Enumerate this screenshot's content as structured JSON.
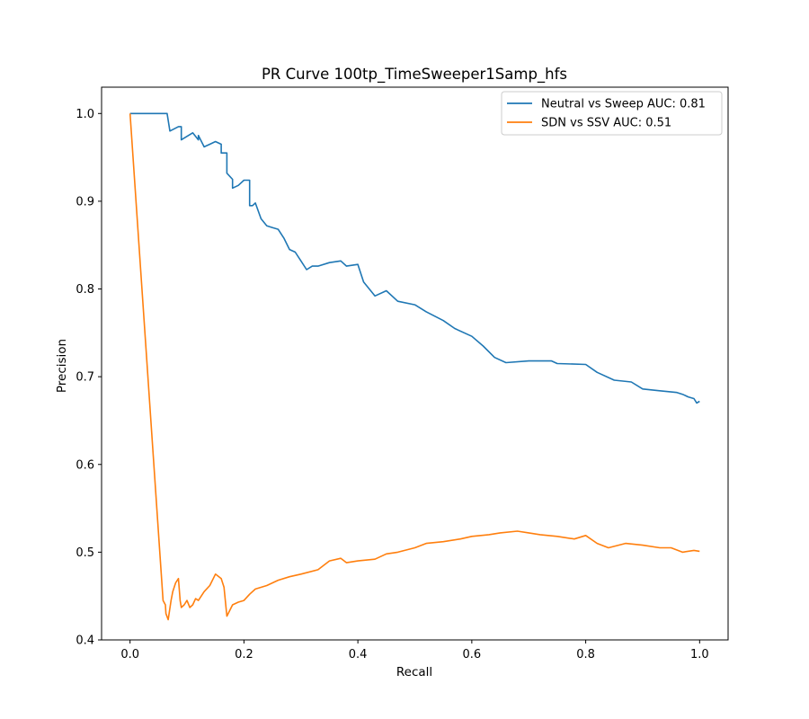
{
  "chart_data": {
    "type": "line",
    "title": "PR Curve 100tp_TimeSweeper1Samp_hfs",
    "xlabel": "Recall",
    "ylabel": "Precision",
    "xlim": [
      -0.05,
      1.05
    ],
    "ylim": [
      0.4,
      1.03
    ],
    "x_ticks": [
      "0.0",
      "0.2",
      "0.4",
      "0.6",
      "0.8",
      "1.0"
    ],
    "y_ticks": [
      "0.4",
      "0.5",
      "0.6",
      "0.7",
      "0.8",
      "0.9",
      "1.0"
    ],
    "grid": false,
    "legend_position": "top-right",
    "series": [
      {
        "name": "Neutral vs Sweep AUC: 0.81",
        "color": "#1f77b4",
        "x": [
          0.0,
          0.065,
          0.07,
          0.07,
          0.085,
          0.09,
          0.09,
          0.11,
          0.12,
          0.12,
          0.13,
          0.14,
          0.15,
          0.16,
          0.16,
          0.17,
          0.17,
          0.18,
          0.18,
          0.19,
          0.2,
          0.21,
          0.21,
          0.215,
          0.22,
          0.23,
          0.24,
          0.25,
          0.26,
          0.27,
          0.28,
          0.29,
          0.3,
          0.31,
          0.32,
          0.33,
          0.35,
          0.37,
          0.38,
          0.4,
          0.41,
          0.42,
          0.43,
          0.45,
          0.47,
          0.5,
          0.52,
          0.55,
          0.57,
          0.6,
          0.62,
          0.64,
          0.66,
          0.7,
          0.74,
          0.75,
          0.8,
          0.82,
          0.85,
          0.88,
          0.9,
          0.93,
          0.96,
          0.97,
          0.98,
          0.99,
          0.995,
          1.0
        ],
        "y": [
          1.0,
          1.0,
          0.98,
          0.98,
          0.985,
          0.985,
          0.97,
          0.978,
          0.97,
          0.975,
          0.962,
          0.965,
          0.968,
          0.965,
          0.955,
          0.955,
          0.932,
          0.925,
          0.915,
          0.918,
          0.924,
          0.924,
          0.895,
          0.895,
          0.898,
          0.88,
          0.872,
          0.87,
          0.868,
          0.858,
          0.845,
          0.842,
          0.832,
          0.822,
          0.826,
          0.826,
          0.83,
          0.832,
          0.826,
          0.828,
          0.808,
          0.8,
          0.792,
          0.798,
          0.786,
          0.782,
          0.774,
          0.764,
          0.755,
          0.746,
          0.735,
          0.722,
          0.716,
          0.718,
          0.718,
          0.715,
          0.714,
          0.705,
          0.696,
          0.694,
          0.686,
          0.684,
          0.682,
          0.68,
          0.677,
          0.675,
          0.67,
          0.672
        ]
      },
      {
        "name": "SDN vs SSV AUC: 0.51",
        "color": "#ff7f0e",
        "x": [
          0.0,
          0.058,
          0.062,
          0.063,
          0.067,
          0.072,
          0.075,
          0.08,
          0.085,
          0.088,
          0.09,
          0.095,
          0.1,
          0.105,
          0.11,
          0.115,
          0.12,
          0.125,
          0.13,
          0.14,
          0.15,
          0.16,
          0.165,
          0.17,
          0.18,
          0.19,
          0.2,
          0.21,
          0.22,
          0.24,
          0.26,
          0.28,
          0.3,
          0.33,
          0.35,
          0.37,
          0.38,
          0.4,
          0.43,
          0.45,
          0.47,
          0.5,
          0.52,
          0.55,
          0.58,
          0.6,
          0.63,
          0.65,
          0.68,
          0.7,
          0.72,
          0.75,
          0.78,
          0.8,
          0.82,
          0.84,
          0.87,
          0.9,
          0.93,
          0.95,
          0.97,
          0.99,
          1.0
        ],
        "y": [
          1.0,
          0.445,
          0.44,
          0.43,
          0.423,
          0.445,
          0.455,
          0.465,
          0.47,
          0.445,
          0.437,
          0.44,
          0.445,
          0.437,
          0.44,
          0.447,
          0.445,
          0.45,
          0.455,
          0.462,
          0.475,
          0.47,
          0.46,
          0.427,
          0.44,
          0.443,
          0.445,
          0.452,
          0.458,
          0.462,
          0.468,
          0.472,
          0.475,
          0.48,
          0.49,
          0.493,
          0.488,
          0.49,
          0.492,
          0.498,
          0.5,
          0.505,
          0.51,
          0.512,
          0.515,
          0.518,
          0.52,
          0.522,
          0.524,
          0.522,
          0.52,
          0.518,
          0.515,
          0.519,
          0.51,
          0.505,
          0.51,
          0.508,
          0.505,
          0.505,
          0.5,
          0.502,
          0.501
        ]
      }
    ]
  }
}
